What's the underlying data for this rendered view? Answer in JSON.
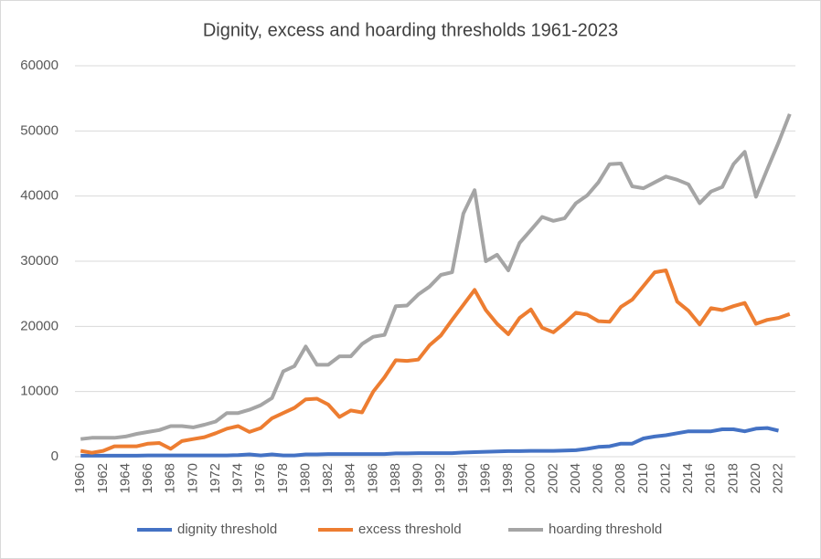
{
  "chart_data": {
    "type": "line",
    "title": "Dignity, excess and hoarding thresholds 1961-2023",
    "categories": [
      "1960",
      null,
      "1962",
      null,
      "1964",
      null,
      "1966",
      null,
      "1968",
      null,
      "1970",
      null,
      "1972",
      null,
      "1974",
      null,
      "1976",
      null,
      "1978",
      null,
      "1980",
      null,
      "1982",
      null,
      "1984",
      null,
      "1986",
      null,
      "1988",
      null,
      "1990",
      null,
      "1992",
      null,
      "1994",
      null,
      "1996",
      null,
      "1998",
      null,
      "2000",
      null,
      "2002",
      null,
      "2004",
      null,
      "2006",
      null,
      "2008",
      null,
      "2010",
      null,
      "2012",
      null,
      "2014",
      null,
      "2016",
      null,
      "2018",
      null,
      "2020",
      null,
      "2022",
      null
    ],
    "series": [
      {
        "name": "dignity threshold",
        "color": "#4472c4",
        "values": [
          150,
          150,
          150,
          150,
          150,
          150,
          200,
          200,
          200,
          200,
          200,
          200,
          200,
          200,
          250,
          350,
          200,
          350,
          200,
          200,
          350,
          350,
          400,
          400,
          400,
          400,
          400,
          400,
          500,
          500,
          550,
          550,
          550,
          550,
          650,
          700,
          750,
          800,
          850,
          850,
          900,
          900,
          900,
          950,
          1000,
          1200,
          1500,
          1600,
          2000,
          2000,
          2800,
          3100,
          3300,
          3600,
          3900,
          3900,
          3900,
          4200,
          4200,
          3900,
          4300,
          4400,
          4000,
          null
        ]
      },
      {
        "name": "excess threshold",
        "color": "#ed7d31",
        "values": [
          900,
          600,
          900,
          1600,
          1600,
          1600,
          2000,
          2100,
          1200,
          2400,
          2700,
          3000,
          3600,
          4300,
          4700,
          3800,
          4400,
          5900,
          6700,
          7500,
          8800,
          8900,
          8000,
          6100,
          7100,
          6800,
          10000,
          12200,
          14800,
          14700,
          14900,
          17100,
          18600,
          21000,
          23300,
          25600,
          22500,
          20400,
          18800,
          21300,
          22600,
          19800,
          19100,
          20500,
          22100,
          21800,
          20800,
          20700,
          23000,
          24100,
          26200,
          28300,
          28600,
          23800,
          22400,
          20300,
          22800,
          22500,
          23100,
          23600,
          20400,
          21000,
          21300,
          21900
        ]
      },
      {
        "name": "hoarding threshold",
        "color": "#a5a5a5",
        "values": [
          2700,
          2900,
          2900,
          2900,
          3100,
          3500,
          3800,
          4100,
          4700,
          4700,
          4500,
          4900,
          5400,
          6700,
          6700,
          7200,
          7900,
          9000,
          13100,
          13900,
          16900,
          14100,
          14100,
          15400,
          15400,
          17300,
          18400,
          18700,
          23100,
          23200,
          24900,
          26100,
          27900,
          28300,
          37300,
          40900,
          30000,
          31000,
          28600,
          32800,
          34800,
          36800,
          36200,
          36600,
          38900,
          40100,
          42100,
          44900,
          45000,
          41500,
          41200,
          42100,
          43000,
          42500,
          41800,
          38900,
          40700,
          41400,
          44900,
          46800,
          39900,
          44100,
          48200,
          52600
        ]
      }
    ],
    "ylim": [
      0,
      60000
    ],
    "yticks": [
      0,
      10000,
      20000,
      30000,
      40000,
      50000,
      60000
    ],
    "grid": true,
    "legend": "bottom"
  }
}
